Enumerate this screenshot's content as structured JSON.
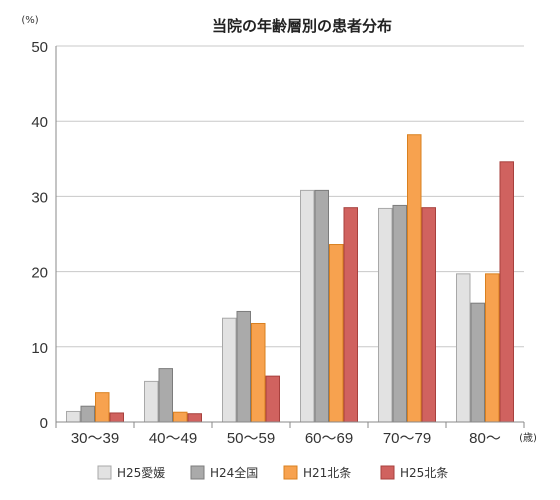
{
  "chart_data": {
    "type": "bar",
    "title": "当院の年齢層別の患者分布",
    "ylabel": "(%)",
    "xlabel": "(歳)",
    "ylim": [
      0,
      50
    ],
    "yticks": [
      "0",
      "10",
      "20",
      "30",
      "40",
      "50"
    ],
    "categories": [
      "30〜39",
      "40〜49",
      "50〜59",
      "60〜69",
      "70〜79",
      "80〜"
    ],
    "series": [
      {
        "name": "H25愛媛",
        "color": "#e2e2e2",
        "stroke": "#a8a8a8",
        "values": [
          1.4,
          5.4,
          13.8,
          30.8,
          28.4,
          19.7
        ]
      },
      {
        "name": "H24全国",
        "color": "#aaaaaa",
        "stroke": "#7c7c7c",
        "values": [
          2.1,
          7.1,
          14.7,
          30.8,
          28.8,
          15.8
        ]
      },
      {
        "name": "H21北条",
        "color": "#f7a24f",
        "stroke": "#d9801f",
        "values": [
          3.9,
          1.3,
          13.1,
          23.6,
          38.2,
          19.7
        ]
      },
      {
        "name": "H25北条",
        "color": "#d0625f",
        "stroke": "#a7403d",
        "values": [
          1.2,
          1.1,
          6.1,
          28.5,
          28.5,
          34.6
        ]
      }
    ],
    "grid": true,
    "legend": "bottom"
  }
}
